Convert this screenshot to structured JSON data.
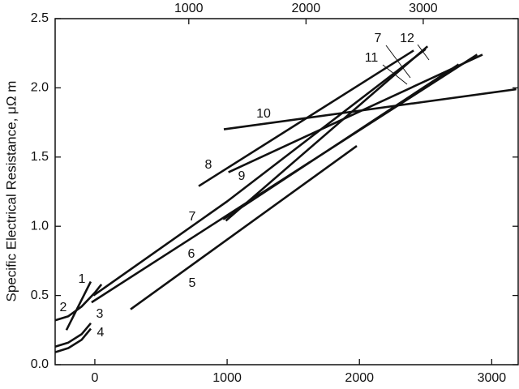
{
  "chart_data": {
    "type": "line",
    "y_label": "Specific Electrical Resistance, μΩ m",
    "xlim": [
      -300,
      3200
    ],
    "xticks": [
      0,
      1000,
      2000,
      3000
    ],
    "x2lim": [
      -140,
      3810
    ],
    "x2ticks": [
      1000,
      2000,
      3000
    ],
    "ylim": [
      0,
      2.5
    ],
    "yticks": [
      {
        "value": 0,
        "label": "0.0"
      },
      {
        "value": 0.5,
        "label": "0.5"
      },
      {
        "value": 1,
        "label": "1.0"
      },
      {
        "value": 1.5,
        "label": "1.5"
      },
      {
        "value": 2,
        "label": "2.0"
      },
      {
        "value": 2.5,
        "label": "2.5"
      }
    ],
    "series": [
      {
        "name": "1",
        "color": "#111111",
        "x": [
          -215,
          -31
        ],
        "values": [
          0.25,
          0.6
        ]
      },
      {
        "name": "2",
        "color": "#111111",
        "x": [
          -300,
          -200,
          -100,
          0,
          50
        ],
        "values": [
          0.32,
          0.35,
          0.42,
          0.52,
          0.58
        ]
      },
      {
        "name": "3",
        "color": "#111111",
        "x": [
          -300,
          -200,
          -100,
          -30
        ],
        "values": [
          0.13,
          0.16,
          0.22,
          0.3
        ]
      },
      {
        "name": "4",
        "color": "#111111",
        "x": [
          -300,
          -200,
          -100,
          -30
        ],
        "values": [
          0.09,
          0.12,
          0.18,
          0.26
        ]
      },
      {
        "name": "5",
        "color": "#111111",
        "x": [
          270,
          1980
        ],
        "values": [
          0.4,
          1.58
        ]
      },
      {
        "name": "6",
        "color": "#111111",
        "x": [
          -25,
          2890
        ],
        "values": [
          0.45,
          2.24
        ]
      },
      {
        "name": "7",
        "color": "#111111",
        "x": [
          -10,
          1000,
          2500
        ],
        "values": [
          0.5,
          1.18,
          2.28
        ]
      },
      {
        "name": "8",
        "color": "#111111",
        "x": [
          785,
          2410
        ],
        "values": [
          1.29,
          2.27
        ]
      },
      {
        "name": "9",
        "color": "#111111",
        "x": [
          1010,
          2930
        ],
        "values": [
          1.39,
          2.24
        ]
      },
      {
        "name": "10",
        "color": "#111111",
        "x": [
          975,
          3185
        ],
        "values": [
          1.7,
          1.99
        ]
      },
      {
        "name": "11",
        "color": "#111111",
        "x": [
          970,
          2750
        ],
        "values": [
          1.05,
          2.17
        ]
      },
      {
        "name": "12",
        "color": "#111111",
        "x": [
          990,
          2515
        ],
        "values": [
          1.04,
          2.3
        ]
      }
    ]
  }
}
